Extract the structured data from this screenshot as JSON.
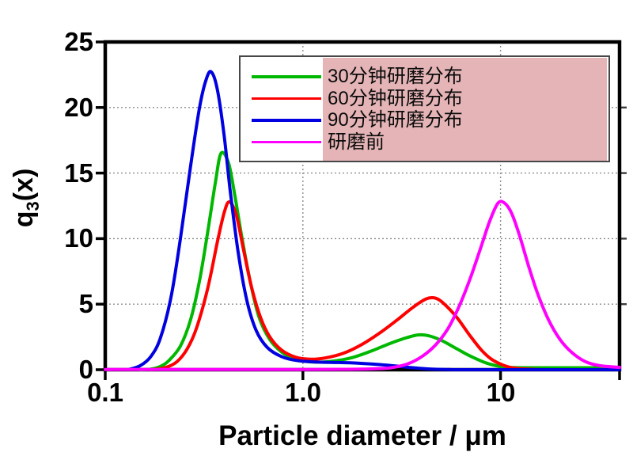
{
  "figure": {
    "background": "#ffffff"
  },
  "axes": {
    "x": {
      "title": "Particle diameter / μm",
      "scale": "log",
      "ticks": [
        "0.1",
        "1.0",
        "10"
      ],
      "tick_values": [
        0.1,
        1.0,
        10
      ],
      "gridlines": [
        1.0,
        10
      ]
    },
    "y": {
      "title_q": "q",
      "title_sub": "3",
      "title_x": "(x)",
      "ticks": [
        "25",
        "20",
        "15",
        "10",
        "5",
        "0"
      ],
      "tick_values": [
        25,
        20,
        15,
        10,
        5,
        0
      ],
      "gridlines": [
        5,
        10,
        15,
        20
      ]
    }
  },
  "legend": {
    "entries": [
      "30分钟研磨分布",
      "60分钟研磨分布",
      "90分钟研磨分布",
      "研磨前"
    ],
    "highlight_color": "#e4b4b6",
    "border_color": "#474747"
  },
  "chart_data": {
    "type": "line",
    "xscale": "log",
    "xlim": [
      0.1,
      40
    ],
    "ylim": [
      0,
      25
    ],
    "xlabel": "Particle diameter / μm",
    "ylabel": "q3(x)",
    "grid": true,
    "legend_position": "top-right",
    "series": [
      {
        "name": "30分钟研磨分布",
        "color": "#00b800",
        "peaks": [
          {
            "x": 0.39,
            "y": 16.5
          },
          {
            "x": 3.9,
            "y": 2.7
          }
        ],
        "points": [
          [
            0.15,
            0
          ],
          [
            0.17,
            0.05
          ],
          [
            0.19,
            0.25
          ],
          [
            0.21,
            0.7
          ],
          [
            0.24,
            1.8
          ],
          [
            0.27,
            3.8
          ],
          [
            0.3,
            6.8
          ],
          [
            0.33,
            10.5
          ],
          [
            0.36,
            14.2
          ],
          [
            0.385,
            16.5
          ],
          [
            0.42,
            15.8
          ],
          [
            0.45,
            13.5
          ],
          [
            0.49,
            10.2
          ],
          [
            0.54,
            6.8
          ],
          [
            0.6,
            4.0
          ],
          [
            0.68,
            2.3
          ],
          [
            0.78,
            1.35
          ],
          [
            0.9,
            0.85
          ],
          [
            1.05,
            0.62
          ],
          [
            1.25,
            0.58
          ],
          [
            1.5,
            0.7
          ],
          [
            1.8,
            0.95
          ],
          [
            2.2,
            1.4
          ],
          [
            2.7,
            1.95
          ],
          [
            3.2,
            2.35
          ],
          [
            3.8,
            2.65
          ],
          [
            4.3,
            2.6
          ],
          [
            5.0,
            2.25
          ],
          [
            6.0,
            1.6
          ],
          [
            7.0,
            1.05
          ],
          [
            8.5,
            0.5
          ],
          [
            10,
            0.25
          ],
          [
            12,
            0.16
          ],
          [
            16,
            0.15
          ],
          [
            25,
            0.15
          ],
          [
            40,
            0.15
          ]
        ]
      },
      {
        "name": "60分钟研磨分布",
        "color": "#ff0000",
        "peaks": [
          {
            "x": 0.42,
            "y": 12.8
          },
          {
            "x": 4.4,
            "y": 5.5
          }
        ],
        "points": [
          [
            0.17,
            0
          ],
          [
            0.2,
            0.15
          ],
          [
            0.23,
            0.6
          ],
          [
            0.26,
            1.6
          ],
          [
            0.29,
            3.2
          ],
          [
            0.33,
            6.2
          ],
          [
            0.37,
            9.8
          ],
          [
            0.4,
            12.0
          ],
          [
            0.425,
            12.8
          ],
          [
            0.46,
            11.8
          ],
          [
            0.5,
            9.2
          ],
          [
            0.55,
            6.3
          ],
          [
            0.61,
            4.0
          ],
          [
            0.68,
            2.5
          ],
          [
            0.78,
            1.5
          ],
          [
            0.92,
            0.95
          ],
          [
            1.1,
            0.8
          ],
          [
            1.3,
            0.9
          ],
          [
            1.6,
            1.25
          ],
          [
            2.0,
            1.95
          ],
          [
            2.5,
            2.9
          ],
          [
            3.0,
            3.8
          ],
          [
            3.6,
            4.75
          ],
          [
            4.2,
            5.4
          ],
          [
            4.7,
            5.45
          ],
          [
            5.2,
            5.0
          ],
          [
            6.0,
            4.0
          ],
          [
            7.0,
            2.6
          ],
          [
            8.0,
            1.5
          ],
          [
            9.0,
            0.8
          ],
          [
            10.5,
            0.3
          ],
          [
            12,
            0.1
          ],
          [
            15,
            0.02
          ],
          [
            20,
            0
          ],
          [
            40,
            0
          ]
        ]
      },
      {
        "name": "90分钟研磨分布",
        "color": "#0000e0",
        "peaks": [
          {
            "x": 0.34,
            "y": 22.7
          }
        ],
        "points": [
          [
            0.13,
            0
          ],
          [
            0.15,
            0.3
          ],
          [
            0.17,
            1.0
          ],
          [
            0.19,
            2.4
          ],
          [
            0.215,
            5.5
          ],
          [
            0.24,
            10.0
          ],
          [
            0.27,
            15.5
          ],
          [
            0.3,
            20.0
          ],
          [
            0.325,
            22.2
          ],
          [
            0.345,
            22.7
          ],
          [
            0.37,
            21.3
          ],
          [
            0.4,
            17.8
          ],
          [
            0.43,
            13.5
          ],
          [
            0.47,
            9.0
          ],
          [
            0.52,
            5.3
          ],
          [
            0.58,
            3.0
          ],
          [
            0.66,
            1.7
          ],
          [
            0.78,
            1.0
          ],
          [
            0.95,
            0.68
          ],
          [
            1.2,
            0.58
          ],
          [
            1.5,
            0.55
          ],
          [
            1.9,
            0.5
          ],
          [
            2.4,
            0.4
          ],
          [
            3.0,
            0.27
          ],
          [
            3.7,
            0.13
          ],
          [
            4.5,
            0.04
          ],
          [
            5.5,
            0.01
          ],
          [
            7,
            0
          ],
          [
            40,
            0
          ]
        ]
      },
      {
        "name": "研磨前",
        "color": "#ff00ff",
        "peaks": [
          {
            "x": 9.8,
            "y": 12.8
          }
        ],
        "points": [
          [
            0.1,
            0.02
          ],
          [
            0.5,
            0.02
          ],
          [
            1.0,
            0.02
          ],
          [
            1.6,
            0.03
          ],
          [
            2.2,
            0.06
          ],
          [
            2.8,
            0.15
          ],
          [
            3.4,
            0.45
          ],
          [
            4.0,
            1.0
          ],
          [
            4.7,
            1.9
          ],
          [
            5.4,
            3.1
          ],
          [
            6.2,
            4.9
          ],
          [
            7.0,
            6.9
          ],
          [
            7.9,
            9.2
          ],
          [
            8.8,
            11.3
          ],
          [
            9.7,
            12.7
          ],
          [
            10.5,
            12.7
          ],
          [
            11.4,
            11.9
          ],
          [
            12.5,
            10.2
          ],
          [
            14,
            7.7
          ],
          [
            15.5,
            5.7
          ],
          [
            17.5,
            3.8
          ],
          [
            20,
            2.3
          ],
          [
            23,
            1.3
          ],
          [
            27,
            0.6
          ],
          [
            32,
            0.3
          ],
          [
            40,
            0.18
          ]
        ]
      }
    ]
  }
}
